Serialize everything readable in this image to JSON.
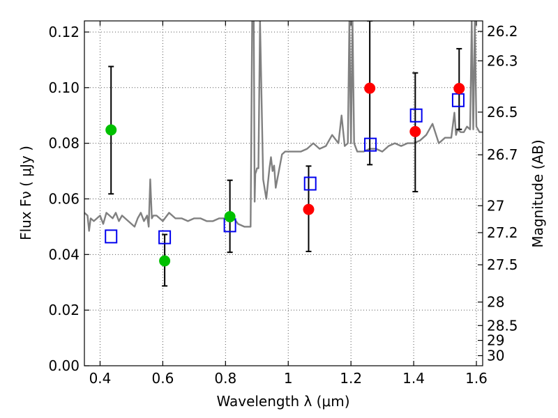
{
  "chart_data": {
    "type": "scatter",
    "xlabel": "Wavelength  λ (μm)",
    "ylabel": "Flux  Fν  ( μJy )",
    "y2label": "Magnitude (AB)",
    "xlim": [
      0.35,
      1.62
    ],
    "ylim": [
      0.0,
      0.124
    ],
    "grid": true,
    "x_ticks": [
      "0.4",
      "0.6",
      "0.8",
      "1",
      "1.2",
      "1.4",
      "1.6"
    ],
    "x_tick_values": [
      0.4,
      0.6,
      0.8,
      1.0,
      1.2,
      1.4,
      1.6
    ],
    "y_ticks": [
      "0.00",
      "0.02",
      "0.04",
      "0.06",
      "0.08",
      "0.10",
      "0.12"
    ],
    "y_tick_values": [
      0.0,
      0.02,
      0.04,
      0.06,
      0.08,
      0.1,
      0.12
    ],
    "mag_ticks": [
      "26.2",
      "26.3",
      "26.5",
      "26.7",
      "27",
      "27.2",
      "27.5",
      "28",
      "28.5",
      "29",
      "30"
    ],
    "mag_tick_values": [
      26.2,
      26.3,
      26.5,
      26.7,
      27.0,
      27.2,
      27.5,
      28.0,
      28.5,
      29.0,
      30.0
    ],
    "series": [
      {
        "kind": "points-with-errors",
        "marker": "circle-filled",
        "color": "#00c000",
        "x": [
          0.435,
          0.606,
          0.814
        ],
        "y": [
          0.0848,
          0.0377,
          0.0536
        ],
        "err_low": [
          0.0618,
          0.0287,
          0.0408
        ],
        "err_high": [
          0.1076,
          0.0472,
          0.0667
        ]
      },
      {
        "kind": "points-with-errors",
        "marker": "circle-filled",
        "color": "#ff0000",
        "x": [
          1.065,
          1.26,
          1.405,
          1.545
        ],
        "y": [
          0.0562,
          0.0998,
          0.0842,
          0.0997
        ],
        "err_low": [
          0.0411,
          0.0723,
          0.0626,
          0.085
        ],
        "err_high": [
          0.0718,
          0.124,
          0.1053,
          0.114
        ]
      },
      {
        "kind": "points",
        "marker": "square-open",
        "color": "#0000ee",
        "x": [
          0.435,
          0.606,
          0.814,
          1.07,
          1.262,
          1.408,
          1.542
        ],
        "y": [
          0.0465,
          0.0462,
          0.0505,
          0.0655,
          0.0795,
          0.09,
          0.0955
        ]
      },
      {
        "kind": "line",
        "color": "#808080",
        "x": [
          0.35,
          0.36,
          0.365,
          0.37,
          0.38,
          0.39,
          0.4,
          0.41,
          0.42,
          0.43,
          0.44,
          0.45,
          0.46,
          0.47,
          0.48,
          0.49,
          0.5,
          0.51,
          0.52,
          0.53,
          0.54,
          0.55,
          0.555,
          0.56,
          0.565,
          0.57,
          0.58,
          0.6,
          0.62,
          0.64,
          0.66,
          0.68,
          0.7,
          0.72,
          0.74,
          0.76,
          0.78,
          0.8,
          0.82,
          0.84,
          0.86,
          0.88,
          0.885,
          0.89,
          0.893,
          0.895,
          0.898,
          0.9,
          0.905,
          0.91,
          0.92,
          0.93,
          0.94,
          0.945,
          0.95,
          0.955,
          0.96,
          0.97,
          0.98,
          0.99,
          1.0,
          1.02,
          1.04,
          1.06,
          1.08,
          1.1,
          1.12,
          1.14,
          1.16,
          1.17,
          1.18,
          1.19,
          1.195,
          1.2,
          1.205,
          1.21,
          1.22,
          1.24,
          1.26,
          1.28,
          1.3,
          1.32,
          1.34,
          1.36,
          1.38,
          1.4,
          1.42,
          1.44,
          1.46,
          1.48,
          1.5,
          1.52,
          1.53,
          1.535,
          1.54,
          1.55,
          1.56,
          1.57,
          1.58,
          1.585,
          1.59,
          1.595,
          1.6,
          1.61,
          1.62
        ],
        "y": [
          0.055,
          0.054,
          0.0485,
          0.053,
          0.052,
          0.053,
          0.054,
          0.051,
          0.055,
          0.054,
          0.053,
          0.055,
          0.052,
          0.054,
          0.053,
          0.052,
          0.051,
          0.05,
          0.053,
          0.055,
          0.052,
          0.054,
          0.05,
          0.067,
          0.053,
          0.054,
          0.054,
          0.052,
          0.055,
          0.053,
          0.053,
          0.052,
          0.053,
          0.053,
          0.052,
          0.052,
          0.053,
          0.053,
          0.054,
          0.051,
          0.05,
          0.05,
          0.124,
          0.124,
          0.059,
          0.069,
          0.07,
          0.071,
          0.071,
          0.124,
          0.067,
          0.06,
          0.071,
          0.075,
          0.07,
          0.072,
          0.064,
          0.07,
          0.076,
          0.077,
          0.077,
          0.077,
          0.077,
          0.078,
          0.08,
          0.078,
          0.079,
          0.083,
          0.08,
          0.09,
          0.079,
          0.08,
          0.124,
          0.08,
          0.124,
          0.08,
          0.077,
          0.077,
          0.078,
          0.078,
          0.077,
          0.079,
          0.08,
          0.079,
          0.08,
          0.08,
          0.081,
          0.083,
          0.087,
          0.08,
          0.082,
          0.082,
          0.091,
          0.083,
          0.085,
          0.084,
          0.084,
          0.086,
          0.085,
          0.124,
          0.085,
          0.124,
          0.086,
          0.084,
          0.084
        ]
      }
    ]
  }
}
